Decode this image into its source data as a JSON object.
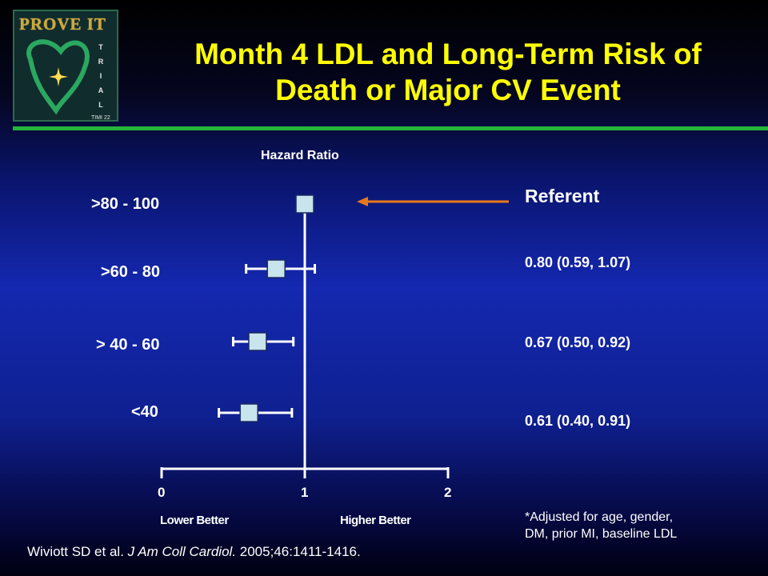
{
  "logo": {
    "name": "PROVE IT",
    "side_letters": [
      "T",
      "R",
      "I",
      "A",
      "L"
    ],
    "sub": "TIMI 22"
  },
  "slide": {
    "title_line1": "Month 4 LDL and Long-Term Risk of",
    "title_line2": "Death or Major CV Event",
    "referent_label": "Referent",
    "footnote_line1": "*Adjusted for age, gender,",
    "footnote_line2": "DM, prior MI, baseline LDL",
    "citation_prefix": "Wiviott SD et al. ",
    "citation_journal": "J Am Coll Cardiol.",
    "citation_suffix": " 2005;46:1411-1416."
  },
  "colors": {
    "title": "#ffff00",
    "marker_fill": "#c8e4ec",
    "arrow": "#e8781c",
    "rule": "#24b43a"
  },
  "chart_data": {
    "type": "forest",
    "xlabel": "Hazard Ratio",
    "xlim": [
      0,
      2
    ],
    "xticks": [
      "0",
      "1",
      "2"
    ],
    "lower_label": "Lower Better",
    "higher_label": "Higher Better",
    "reference_line": 1,
    "rows": [
      {
        "label": ">80 - 100",
        "hr": 1.0,
        "lo": null,
        "hi": null,
        "text": "Referent"
      },
      {
        "label": ">60 - 80",
        "hr": 0.8,
        "lo": 0.59,
        "hi": 1.07,
        "text": "0.80 (0.59, 1.07)"
      },
      {
        "label": "> 40 - 60",
        "hr": 0.67,
        "lo": 0.5,
        "hi": 0.92,
        "text": "0.67 (0.50, 0.92)"
      },
      {
        "label": "<40",
        "hr": 0.61,
        "lo": 0.4,
        "hi": 0.91,
        "text": "0.61 (0.40, 0.91)"
      }
    ]
  }
}
